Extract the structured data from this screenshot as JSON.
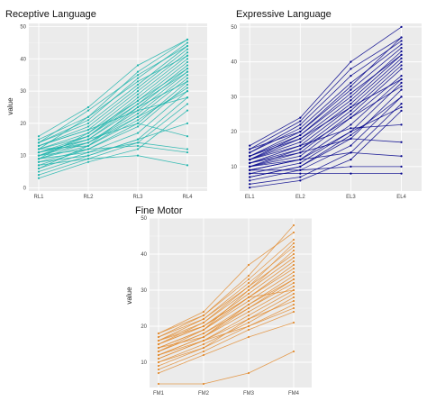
{
  "chart_data": [
    {
      "type": "line",
      "title": "Receptive Language",
      "xlabel": "",
      "ylabel": "value",
      "categories": [
        "RL1",
        "RL2",
        "RL3",
        "RL4"
      ],
      "ylim": [
        -1,
        51
      ],
      "yticks": [
        0,
        10,
        20,
        30,
        40,
        50
      ],
      "grid": true,
      "color": "#1fb5ad",
      "series": [
        {
          "values": [
            3,
            8,
            12,
            24
          ]
        },
        {
          "values": [
            4,
            9,
            14,
            26
          ]
        },
        {
          "values": [
            5,
            10,
            15,
            28
          ]
        },
        {
          "values": [
            6,
            11,
            17,
            30
          ]
        },
        {
          "values": [
            7,
            12,
            19,
            32
          ]
        },
        {
          "values": [
            8,
            12,
            20,
            33
          ]
        },
        {
          "values": [
            9,
            13,
            22,
            34
          ]
        },
        {
          "values": [
            9,
            14,
            23,
            35
          ]
        },
        {
          "values": [
            10,
            14,
            24,
            36
          ]
        },
        {
          "values": [
            10,
            15,
            25,
            37
          ]
        },
        {
          "values": [
            11,
            15,
            26,
            38
          ]
        },
        {
          "values": [
            11,
            16,
            27,
            39
          ]
        },
        {
          "values": [
            12,
            16,
            28,
            40
          ]
        },
        {
          "values": [
            12,
            17,
            29,
            41
          ]
        },
        {
          "values": [
            13,
            18,
            30,
            42
          ]
        },
        {
          "values": [
            13,
            19,
            31,
            43
          ]
        },
        {
          "values": [
            14,
            20,
            32,
            44
          ]
        },
        {
          "values": [
            14,
            21,
            34,
            45
          ]
        },
        {
          "values": [
            15,
            22,
            36,
            46
          ]
        },
        {
          "values": [
            16,
            25,
            38,
            46
          ]
        },
        {
          "values": [
            12,
            13,
            25,
            33
          ]
        },
        {
          "values": [
            11,
            14,
            22,
            30
          ]
        },
        {
          "values": [
            10,
            16,
            26,
            36
          ]
        },
        {
          "values": [
            8,
            10,
            15,
            20
          ]
        },
        {
          "values": [
            9,
            11,
            14,
            12
          ]
        },
        {
          "values": [
            10,
            12,
            13,
            11
          ]
        },
        {
          "values": [
            7,
            9,
            10,
            7
          ]
        },
        {
          "values": [
            11,
            15,
            20,
            16
          ]
        },
        {
          "values": [
            13,
            18,
            24,
            28
          ]
        },
        {
          "values": [
            6,
            13,
            21,
            31
          ]
        },
        {
          "values": [
            12,
            22,
            33,
            41
          ]
        },
        {
          "values": [
            9,
            17,
            27,
            37
          ]
        },
        {
          "values": [
            14,
            24,
            35,
            44
          ]
        }
      ]
    },
    {
      "type": "line",
      "title": "Expressive Language",
      "xlabel": "",
      "ylabel": "",
      "categories": [
        "EL1",
        "EL2",
        "EL3",
        "EL4"
      ],
      "ylim": [
        3,
        51
      ],
      "yticks": [
        10,
        20,
        30,
        40,
        50
      ],
      "grid": true,
      "color": "#00008b",
      "series": [
        {
          "values": [
            4,
            6,
            12,
            26
          ]
        },
        {
          "values": [
            5,
            7,
            14,
            28
          ]
        },
        {
          "values": [
            6,
            9,
            16,
            30
          ]
        },
        {
          "values": [
            7,
            10,
            18,
            32
          ]
        },
        {
          "values": [
            8,
            11,
            20,
            34
          ]
        },
        {
          "values": [
            9,
            12,
            22,
            35
          ]
        },
        {
          "values": [
            10,
            13,
            24,
            36
          ]
        },
        {
          "values": [
            10,
            14,
            25,
            38
          ]
        },
        {
          "values": [
            11,
            15,
            26,
            39
          ]
        },
        {
          "values": [
            11,
            16,
            27,
            40
          ]
        },
        {
          "values": [
            12,
            17,
            28,
            41
          ]
        },
        {
          "values": [
            12,
            18,
            29,
            42
          ]
        },
        {
          "values": [
            13,
            19,
            30,
            43
          ]
        },
        {
          "values": [
            13,
            20,
            32,
            44
          ]
        },
        {
          "values": [
            14,
            21,
            34,
            45
          ]
        },
        {
          "values": [
            14,
            22,
            36,
            46
          ]
        },
        {
          "values": [
            15,
            23,
            38,
            47
          ]
        },
        {
          "values": [
            16,
            24,
            40,
            50
          ]
        },
        {
          "values": [
            8,
            8,
            8,
            8
          ]
        },
        {
          "values": [
            9,
            9,
            10,
            10
          ]
        },
        {
          "values": [
            10,
            12,
            14,
            13
          ]
        },
        {
          "values": [
            11,
            14,
            18,
            17
          ]
        },
        {
          "values": [
            12,
            16,
            21,
            22
          ]
        },
        {
          "values": [
            7,
            10,
            19,
            30
          ]
        },
        {
          "values": [
            13,
            18,
            27,
            35
          ]
        },
        {
          "values": [
            9,
            12,
            20,
            27
          ]
        },
        {
          "values": [
            15,
            20,
            33,
            47
          ]
        },
        {
          "values": [
            10,
            15,
            24,
            33
          ]
        },
        {
          "values": [
            12,
            19,
            31,
            42
          ]
        }
      ]
    },
    {
      "type": "line",
      "title": "Fine Motor",
      "xlabel": "",
      "ylabel": "value",
      "categories": [
        "FM1",
        "FM2",
        "FM3",
        "FM4"
      ],
      "ylim": [
        3,
        50
      ],
      "yticks": [
        10,
        20,
        30,
        40,
        50
      ],
      "grid": true,
      "color": "#e38e35",
      "series": [
        {
          "values": [
            4,
            4,
            7,
            13
          ]
        },
        {
          "values": [
            7,
            12,
            17,
            21
          ]
        },
        {
          "values": [
            8,
            13,
            19,
            24
          ]
        },
        {
          "values": [
            9,
            14,
            20,
            26
          ]
        },
        {
          "values": [
            10,
            15,
            21,
            28
          ]
        },
        {
          "values": [
            11,
            16,
            22,
            29
          ]
        },
        {
          "values": [
            11,
            16,
            23,
            30
          ]
        },
        {
          "values": [
            12,
            17,
            24,
            31
          ]
        },
        {
          "values": [
            12,
            17,
            25,
            32
          ]
        },
        {
          "values": [
            13,
            18,
            25,
            33
          ]
        },
        {
          "values": [
            13,
            18,
            26,
            34
          ]
        },
        {
          "values": [
            14,
            19,
            27,
            35
          ]
        },
        {
          "values": [
            14,
            19,
            28,
            36
          ]
        },
        {
          "values": [
            15,
            20,
            28,
            37
          ]
        },
        {
          "values": [
            15,
            20,
            29,
            38
          ]
        },
        {
          "values": [
            16,
            21,
            30,
            39
          ]
        },
        {
          "values": [
            16,
            22,
            31,
            40
          ]
        },
        {
          "values": [
            17,
            22,
            32,
            42
          ]
        },
        {
          "values": [
            17,
            23,
            33,
            44
          ]
        },
        {
          "values": [
            18,
            24,
            37,
            46
          ]
        },
        {
          "values": [
            18,
            23,
            34,
            48
          ]
        },
        {
          "values": [
            12,
            16,
            20,
            25
          ]
        },
        {
          "values": [
            10,
            14,
            22,
            27
          ]
        },
        {
          "values": [
            14,
            17,
            26,
            33
          ]
        },
        {
          "values": [
            16,
            20,
            28,
            30
          ]
        },
        {
          "values": [
            13,
            19,
            30,
            41
          ]
        },
        {
          "values": [
            15,
            21,
            31,
            43
          ]
        }
      ]
    }
  ]
}
